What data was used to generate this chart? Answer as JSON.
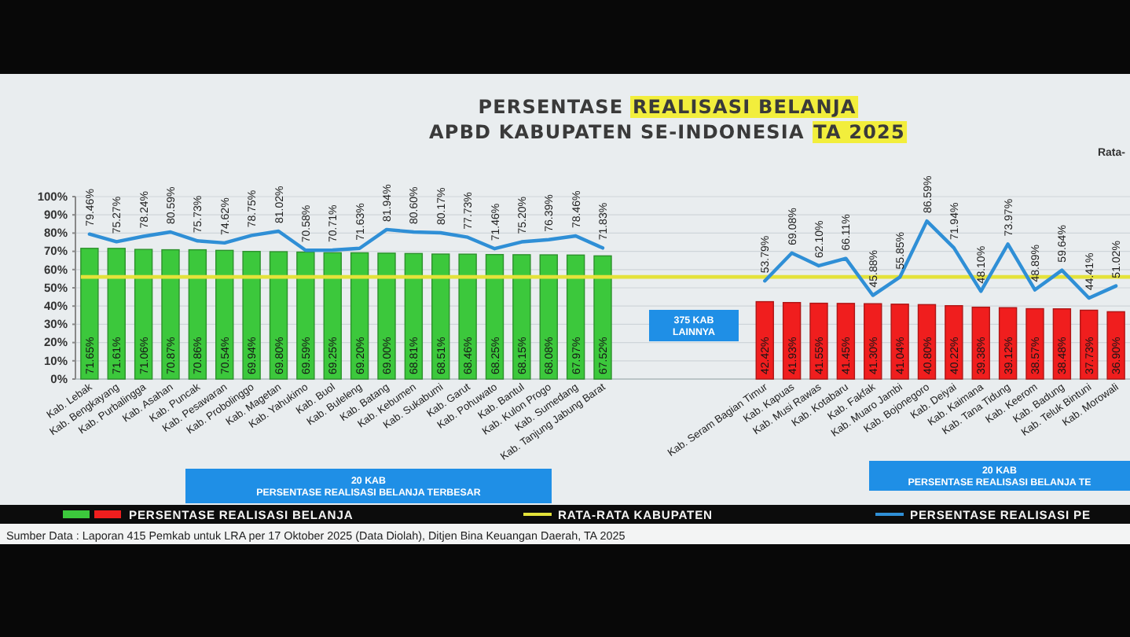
{
  "chart_data": {
    "type": "bar",
    "title": "PERSENTASE REALISASI BELANJA",
    "subtitle": "APBD KABUPATEN SE-INDONESIA TA 2025",
    "categories": [
      "Kab. Lebak",
      "Kab. Bengkayang",
      "Kab. Purbalingga",
      "Kab. Asahan",
      "Kab. Puncak",
      "Kab. Pesawaran",
      "Kab. Probolinggo",
      "Kab. Magetan",
      "Kab. Yahukimo",
      "Kab. Buol",
      "Kab. Buleleng",
      "Kab. Batang",
      "Kab. Kebumen",
      "Kab. Sukabumi",
      "Kab. Garut",
      "Kab. Pohuwato",
      "Kab. Bantul",
      "Kab. Kulon Progo",
      "Kab. Sumedang",
      "Kab. Tanjung Jabung Barat",
      null,
      null,
      null,
      null,
      null,
      "Kab. Seram Bagian Timur",
      "Kab. Kapuas",
      "Kab. Musi Rawas",
      "Kab. Kotabaru",
      "Kab. Fakfak",
      "Kab. Muaro Jambi",
      "Kab. Bojonegoro",
      "Kab. Deiyai",
      "Kab. Kaimana",
      "Kab. Tana Tidung",
      "Kab. Keerom",
      "Kab. Badung",
      "Kab. Teluk Bintuni",
      "Kab. Morowali"
    ],
    "series": [
      {
        "type": "bar",
        "name": "PERSENTASE REALISASI BELANJA",
        "colors": [
          "#3cc83c",
          "#3cc83c",
          "#3cc83c",
          "#3cc83c",
          "#3cc83c",
          "#3cc83c",
          "#3cc83c",
          "#3cc83c",
          "#3cc83c",
          "#3cc83c",
          "#3cc83c",
          "#3cc83c",
          "#3cc83c",
          "#3cc83c",
          "#3cc83c",
          "#3cc83c",
          "#3cc83c",
          "#3cc83c",
          "#3cc83c",
          "#3cc83c",
          null,
          null,
          null,
          null,
          null,
          "#f01e1e",
          "#f01e1e",
          "#f01e1e",
          "#f01e1e",
          "#f01e1e",
          "#f01e1e",
          "#f01e1e",
          "#f01e1e",
          "#f01e1e",
          "#f01e1e",
          "#f01e1e",
          "#f01e1e",
          "#f01e1e",
          "#f01e1e"
        ],
        "values": [
          71.65,
          71.61,
          71.06,
          70.87,
          70.86,
          70.54,
          69.94,
          69.8,
          69.59,
          69.25,
          69.2,
          69.0,
          68.81,
          68.51,
          68.46,
          68.25,
          68.15,
          68.08,
          67.97,
          67.52,
          null,
          null,
          null,
          null,
          null,
          42.42,
          41.93,
          41.55,
          41.45,
          41.3,
          41.04,
          40.8,
          40.22,
          39.38,
          39.12,
          38.57,
          38.48,
          37.73,
          36.9
        ],
        "value_labels": [
          "71.65%",
          "71.61%",
          "71.06%",
          "70.87%",
          "70.86%",
          "70.54%",
          "69.94%",
          "69.80%",
          "69.59%",
          "69.25%",
          "69.20%",
          "69.00%",
          "68.81%",
          "68.51%",
          "68.46%",
          "68.25%",
          "68.15%",
          "68.08%",
          "67.97%",
          "67.52%",
          null,
          null,
          null,
          null,
          null,
          "42.42%",
          "41.93%",
          "41.55%",
          "41.45%",
          "41.30%",
          "41.04%",
          "40.80%",
          "40.22%",
          "39.38%",
          "39.12%",
          "38.57%",
          "38.48%",
          "37.73%",
          "36.90%"
        ]
      },
      {
        "type": "line",
        "name": "PERSENTASE REALISASI PE",
        "color": "#2f8fd6",
        "values": [
          79.46,
          75.27,
          78.24,
          80.59,
          75.73,
          74.62,
          78.75,
          81.02,
          70.58,
          70.71,
          71.63,
          81.94,
          80.6,
          80.17,
          77.73,
          71.46,
          75.2,
          76.39,
          78.46,
          71.83,
          null,
          null,
          null,
          null,
          null,
          53.79,
          69.08,
          62.1,
          66.11,
          45.88,
          55.85,
          86.59,
          71.94,
          48.1,
          73.97,
          48.89,
          59.64,
          44.41,
          51.02
        ],
        "value_labels": [
          "79.46%",
          "75.27%",
          "78.24%",
          "80.59%",
          "75.73%",
          "74.62%",
          "78.75%",
          "81.02%",
          "70.58%",
          "70.71%",
          "71.63%",
          "81.94%",
          "80.60%",
          "80.17%",
          "77.73%",
          "71.46%",
          "75.20%",
          "76.39%",
          "78.46%",
          "71.83%",
          null,
          null,
          null,
          null,
          null,
          "53.79%",
          "69.08%",
          "62.10%",
          "66.11%",
          "45.88%",
          "55.85%",
          "86.59%",
          "71.94%",
          "48.10%",
          "73.97%",
          "48.89%",
          "59.64%",
          "44.41%",
          "51.02%"
        ]
      }
    ],
    "ref_lines": [
      {
        "axis": "y",
        "value": 56,
        "label": "RATA-RATA KABUPATEN",
        "color": "#e4e23a"
      }
    ],
    "ylim": [
      0,
      100
    ],
    "yticks": [
      {
        "value": 0,
        "label": "0%"
      },
      {
        "value": 10,
        "label": "10%"
      },
      {
        "value": 20,
        "label": "20%"
      },
      {
        "value": 30,
        "label": "30%"
      },
      {
        "value": 40,
        "label": "40%"
      },
      {
        "value": 50,
        "label": "50%"
      },
      {
        "value": 60,
        "label": "60%"
      },
      {
        "value": 70,
        "label": "70%"
      },
      {
        "value": 80,
        "label": "80%"
      },
      {
        "value": 90,
        "label": "90%"
      },
      {
        "value": 100,
        "label": "100%"
      }
    ],
    "grid": "y",
    "legend": "bottom",
    "annotations": [
      "20 KAB\nPERSENTASE REALISASI BELANJA TERBESAR",
      "375 KAB\nLAINNYA",
      "20 KAB\nPERSENTASE REALISASI BELANJA TE",
      "Rata-",
      "Sumber Data : Laporan 415 Pemkab untuk LRA per 17 Oktober 2025 (Data Diolah), Ditjen Bina Keuangan Daerah, TA 2025"
    ]
  }
}
